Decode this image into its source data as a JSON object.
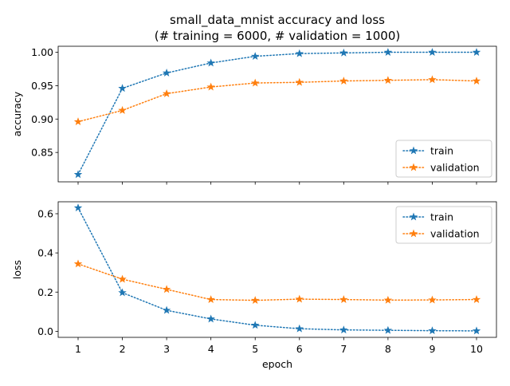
{
  "figure": {
    "title_line1": "small_data_mnist accuracy and loss",
    "title_line2": "(# training = 6000, # validation = 1000)",
    "colors": {
      "train": "#1f77b4",
      "validation": "#ff7f0e",
      "axes": "#000000",
      "legend_border": "#cccccc"
    }
  },
  "chart_data": [
    {
      "type": "line",
      "title": "small_data_mnist accuracy and loss\n(# training = 6000, # validation = 1000)",
      "xlabel": "",
      "ylabel": "accuracy",
      "x": [
        1,
        2,
        3,
        4,
        5,
        6,
        7,
        8,
        9,
        10
      ],
      "xlim": [
        0.55,
        10.45
      ],
      "ylim": [
        0.806,
        1.009
      ],
      "yticks": [
        0.85,
        0.9,
        0.95,
        1.0
      ],
      "ytick_labels": [
        "0.85",
        "0.90",
        "0.95",
        "1.00"
      ],
      "grid": false,
      "legend_position": "lower-right",
      "series": [
        {
          "name": "train",
          "color": "#1f77b4",
          "marker": "star",
          "linestyle": "dotted",
          "values": [
            0.817,
            0.946,
            0.969,
            0.984,
            0.994,
            0.998,
            0.999,
            1.0,
            1.0,
            1.0
          ]
        },
        {
          "name": "validation",
          "color": "#ff7f0e",
          "marker": "star",
          "linestyle": "dotted",
          "values": [
            0.896,
            0.913,
            0.938,
            0.948,
            0.954,
            0.955,
            0.957,
            0.958,
            0.959,
            0.957
          ]
        }
      ]
    },
    {
      "type": "line",
      "xlabel": "epoch",
      "ylabel": "loss",
      "x": [
        1,
        2,
        3,
        4,
        5,
        6,
        7,
        8,
        9,
        10
      ],
      "xticks": [
        1,
        2,
        3,
        4,
        5,
        6,
        7,
        8,
        9,
        10
      ],
      "xtick_labels": [
        "1",
        "2",
        "3",
        "4",
        "5",
        "6",
        "7",
        "8",
        "9",
        "10"
      ],
      "xlim": [
        0.55,
        10.45
      ],
      "ylim": [
        -0.031,
        0.661
      ],
      "yticks": [
        0.0,
        0.2,
        0.4,
        0.6
      ],
      "ytick_labels": [
        "0.0",
        "0.2",
        "0.4",
        "0.6"
      ],
      "grid": false,
      "legend_position": "upper-right",
      "series": [
        {
          "name": "train",
          "color": "#1f77b4",
          "marker": "star",
          "linestyle": "dotted",
          "values": [
            0.63,
            0.197,
            0.107,
            0.063,
            0.031,
            0.013,
            0.007,
            0.005,
            0.003,
            0.002
          ]
        },
        {
          "name": "validation",
          "color": "#ff7f0e",
          "marker": "star",
          "linestyle": "dotted",
          "values": [
            0.344,
            0.266,
            0.214,
            0.162,
            0.158,
            0.164,
            0.162,
            0.159,
            0.16,
            0.162
          ]
        }
      ]
    }
  ]
}
